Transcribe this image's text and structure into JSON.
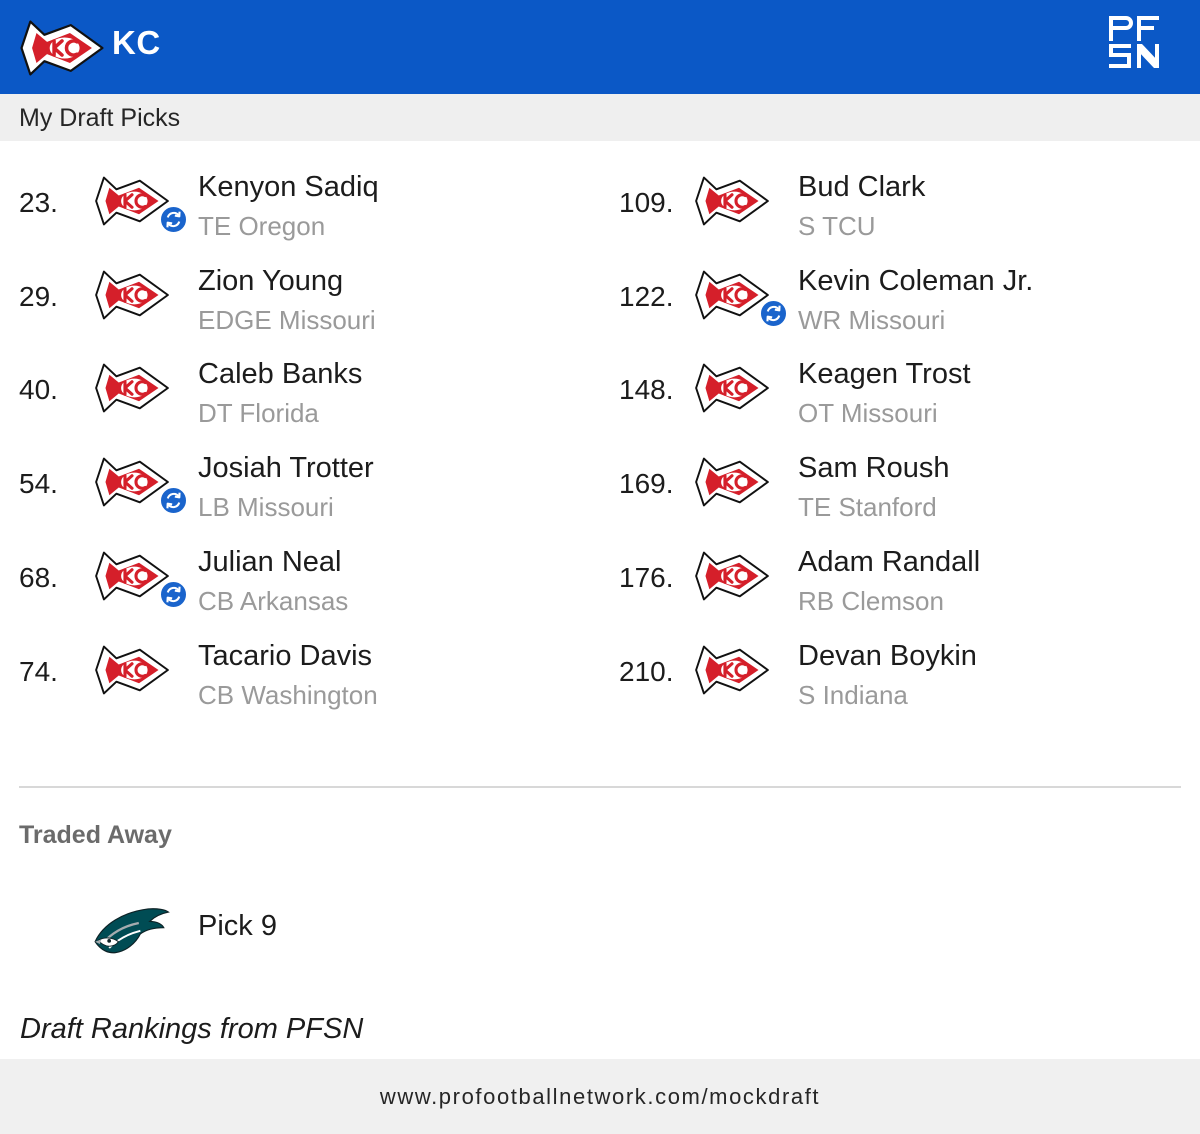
{
  "header": {
    "team_abbr": "KC",
    "team_logo_icon": "chiefs-arrowhead-icon",
    "brand_logo_icon": "pfsn-logo-icon",
    "background_color": "#0b58c6"
  },
  "subbar": {
    "title": "My Draft Picks"
  },
  "picks": [
    {
      "number": "23.",
      "name": "Kenyon Sadiq",
      "position_school": "TE Oregon",
      "traded": true
    },
    {
      "number": "29.",
      "name": "Zion Young",
      "position_school": "EDGE Missouri",
      "traded": false
    },
    {
      "number": "40.",
      "name": "Caleb Banks",
      "position_school": "DT Florida",
      "traded": false
    },
    {
      "number": "54.",
      "name": "Josiah Trotter",
      "position_school": "LB Missouri",
      "traded": true
    },
    {
      "number": "68.",
      "name": "Julian Neal",
      "position_school": "CB Arkansas",
      "traded": true
    },
    {
      "number": "74.",
      "name": "Tacario Davis",
      "position_school": "CB Washington",
      "traded": false
    },
    {
      "number": "109.",
      "name": "Bud Clark",
      "position_school": "S TCU",
      "traded": false
    },
    {
      "number": "122.",
      "name": "Kevin Coleman Jr.",
      "position_school": "WR Missouri",
      "traded": true
    },
    {
      "number": "148.",
      "name": "Keagen Trost",
      "position_school": "OT Missouri",
      "traded": false
    },
    {
      "number": "169.",
      "name": "Sam Roush",
      "position_school": "TE Stanford",
      "traded": false
    },
    {
      "number": "176.",
      "name": "Adam Randall",
      "position_school": "RB Clemson",
      "traded": false
    },
    {
      "number": "210.",
      "name": "Devan Boykin",
      "position_school": "S Indiana",
      "traded": false
    }
  ],
  "traded_away": {
    "title": "Traded Away",
    "items": [
      {
        "label": "Pick 9",
        "team_logo_icon": "eagles-logo-icon"
      }
    ]
  },
  "credit": "Draft Rankings from PFSN",
  "footer": {
    "url": "www.profootballnetwork.com/mockdraft"
  },
  "colors": {
    "accent_blue": "#0b58c6",
    "chiefs_red": "#d51f2a",
    "eagles_green": "#004c54",
    "muted_text": "#9a9a9a"
  }
}
